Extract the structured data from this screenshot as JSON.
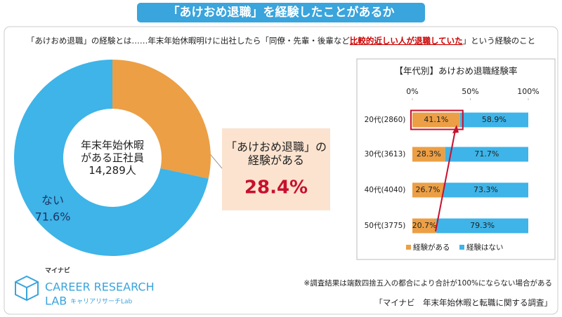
{
  "title": "「あけおめ退職」を経験したことがあるか",
  "definition": {
    "before": "「あけおめ退職」の経験とは……年末年始休暇明けに出社したら「同僚・先輩・後輩など",
    "highlight": "比較的近しい人が退職していた",
    "after": "」という経験のこと"
  },
  "chart_data": [
    {
      "type": "pie",
      "donut": true,
      "center_label": "年末年始休暇\nがある正社員\n14,289人",
      "categories": [
        "「あけおめ退職」の\n経験がある",
        "ない"
      ],
      "values": [
        28.4,
        71.6
      ],
      "value_labels": [
        "28.4%",
        "71.6%"
      ],
      "colors": [
        "#ec9f45",
        "#3eb4e8"
      ]
    },
    {
      "type": "bar",
      "orientation": "horizontal",
      "stacked": true,
      "title": "【年代別】あけおめ退職経験率",
      "categories": [
        "20代(2860)",
        "30代(3613)",
        "40代(4040)",
        "50代(3775)"
      ],
      "series": [
        {
          "name": "経験がある",
          "color": "#ec9f45",
          "values": [
            41.1,
            28.3,
            26.7,
            20.7
          ],
          "value_labels": [
            "41.1%",
            "28.3%",
            "26.7%",
            "20.7%"
          ]
        },
        {
          "name": "経験はない",
          "color": "#3eb4e8",
          "values": [
            58.9,
            71.7,
            73.3,
            79.3
          ],
          "value_labels": [
            "58.9%",
            "71.7%",
            "73.3%",
            "79.3%"
          ]
        }
      ],
      "xlim": [
        0,
        100
      ],
      "xticks": [
        {
          "value": 0,
          "label": "0%"
        },
        {
          "value": 50,
          "label": "50%"
        },
        {
          "value": 100,
          "label": "100%"
        }
      ],
      "legend": "bottom"
    }
  ],
  "footnote": "※調査結果は端数四捨五入の都合により合計が100%にならない場合がある",
  "source": "「マイナビ　年末年始休暇と転職に関する調査」",
  "logo": {
    "brand": "マイナビ",
    "line1": "CAREER RESEARCH",
    "line2": "LAB",
    "sub": "キャリアリサーチLab"
  }
}
